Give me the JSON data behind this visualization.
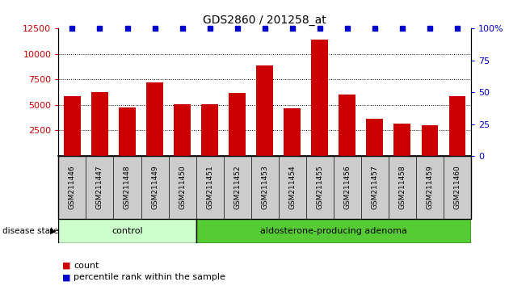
{
  "title": "GDS2860 / 201258_at",
  "samples": [
    "GSM211446",
    "GSM211447",
    "GSM211448",
    "GSM211449",
    "GSM211450",
    "GSM211451",
    "GSM211452",
    "GSM211453",
    "GSM211454",
    "GSM211455",
    "GSM211456",
    "GSM211457",
    "GSM211458",
    "GSM211459",
    "GSM211460"
  ],
  "counts": [
    5850,
    6300,
    4750,
    7200,
    5100,
    5100,
    6200,
    8900,
    4650,
    11400,
    6000,
    3650,
    3200,
    3000,
    5850
  ],
  "percentiles": [
    100,
    100,
    100,
    100,
    100,
    100,
    100,
    100,
    100,
    100,
    100,
    100,
    100,
    100,
    100
  ],
  "bar_color": "#cc0000",
  "percentile_color": "#0000cc",
  "ylim_left": [
    0,
    12500
  ],
  "ylim_right": [
    0,
    100
  ],
  "yticks_left": [
    2500,
    5000,
    7500,
    10000,
    12500
  ],
  "yticks_right": [
    0,
    25,
    50,
    75,
    100
  ],
  "control_samples": 5,
  "control_label": "control",
  "adenoma_label": "aldosterone-producing adenoma",
  "control_color": "#ccffcc",
  "adenoma_color": "#55cc33",
  "sample_bg_color": "#cccccc",
  "tick_label_color": "#cc0000",
  "right_tick_color": "#0000cc",
  "legend_count_label": "count",
  "legend_percentile_label": "percentile rank within the sample",
  "disease_state_label": "disease state"
}
